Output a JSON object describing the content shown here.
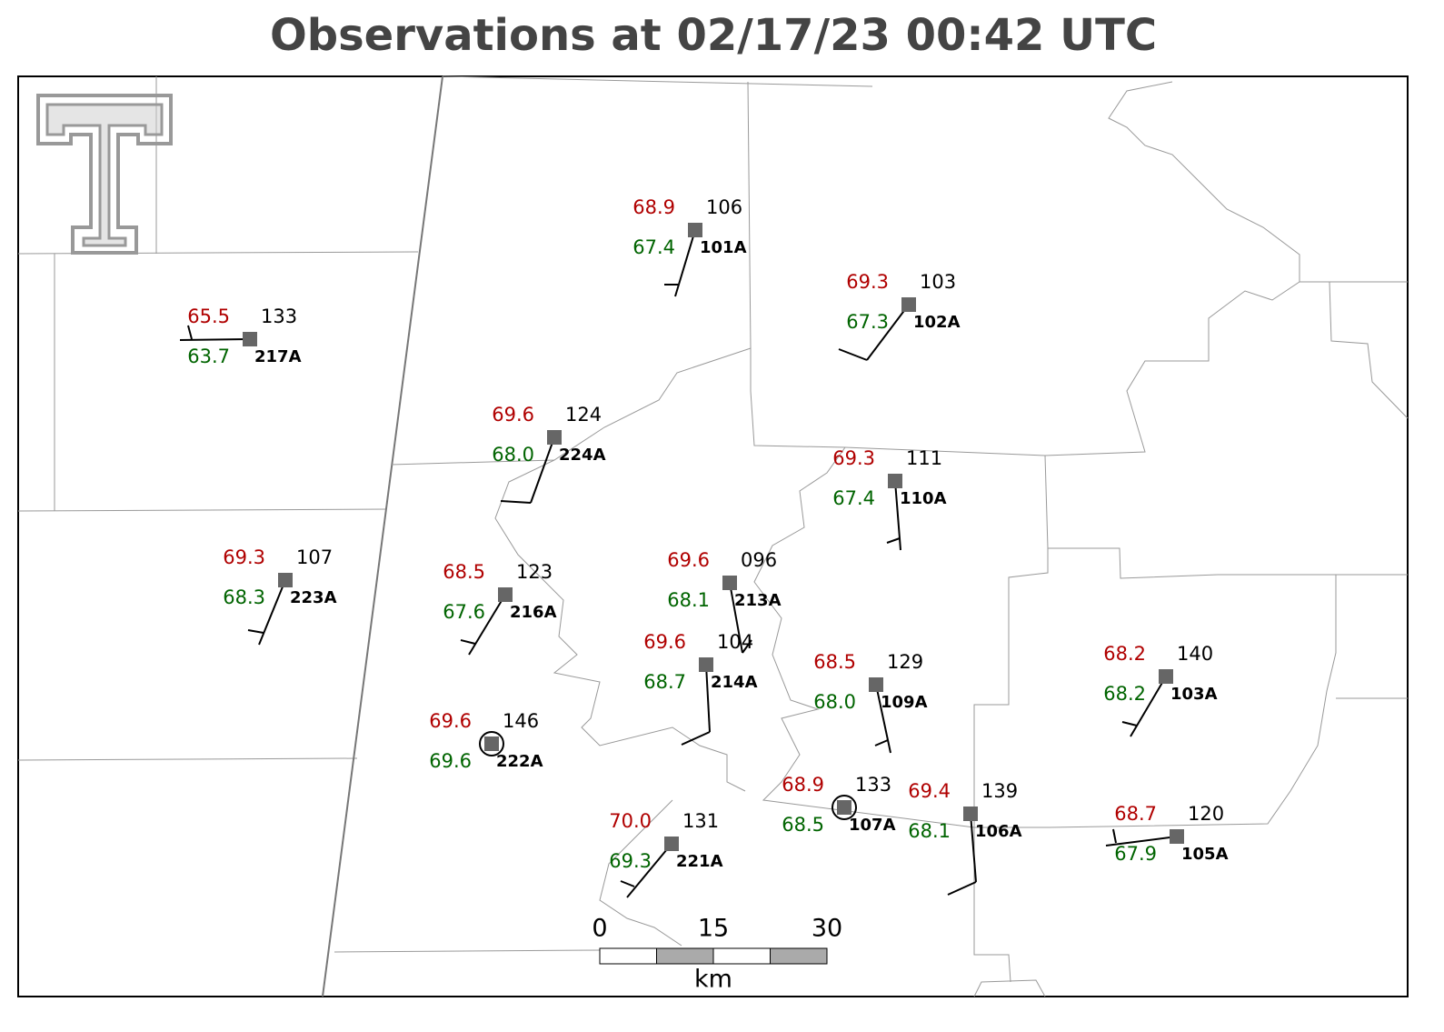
{
  "title": "Observations at 02/17/23 00:42 UTC",
  "stations": [
    {
      "id": "101A",
      "temperature": "68.9",
      "dewpoint": "67.4",
      "pressure": "106"
    },
    {
      "id": "102A",
      "temperature": "69.3",
      "dewpoint": "67.3",
      "pressure": "103"
    },
    {
      "id": "217A",
      "temperature": "65.5",
      "dewpoint": "63.7",
      "pressure": "133"
    },
    {
      "id": "224A",
      "temperature": "69.6",
      "dewpoint": "68.0",
      "pressure": "124"
    },
    {
      "id": "110A",
      "temperature": "69.3",
      "dewpoint": "67.4",
      "pressure": "111"
    },
    {
      "id": "223A",
      "temperature": "69.3",
      "dewpoint": "68.3",
      "pressure": "107"
    },
    {
      "id": "216A",
      "temperature": "68.5",
      "dewpoint": "67.6",
      "pressure": "123"
    },
    {
      "id": "213A",
      "temperature": "69.6",
      "dewpoint": "68.1",
      "pressure": "096"
    },
    {
      "id": "214A",
      "temperature": "69.6",
      "dewpoint": "68.7",
      "pressure": "104"
    },
    {
      "id": "109A",
      "temperature": "68.5",
      "dewpoint": "68.0",
      "pressure": "129"
    },
    {
      "id": "222A",
      "temperature": "69.6",
      "dewpoint": "69.6",
      "pressure": "146"
    },
    {
      "id": "103A",
      "temperature": "68.2",
      "dewpoint": "68.2",
      "pressure": "140"
    },
    {
      "id": "107A",
      "temperature": "68.9",
      "dewpoint": "68.5",
      "pressure": "133"
    },
    {
      "id": "106A",
      "temperature": "69.4",
      "dewpoint": "68.1",
      "pressure": "139"
    },
    {
      "id": "221A",
      "temperature": "70.0",
      "dewpoint": "69.3",
      "pressure": "131"
    },
    {
      "id": "105A",
      "temperature": "68.7",
      "dewpoint": "67.9",
      "pressure": "120"
    }
  ],
  "scale_bar": {
    "labels": [
      "0",
      "15",
      "30"
    ],
    "unit": "km"
  }
}
